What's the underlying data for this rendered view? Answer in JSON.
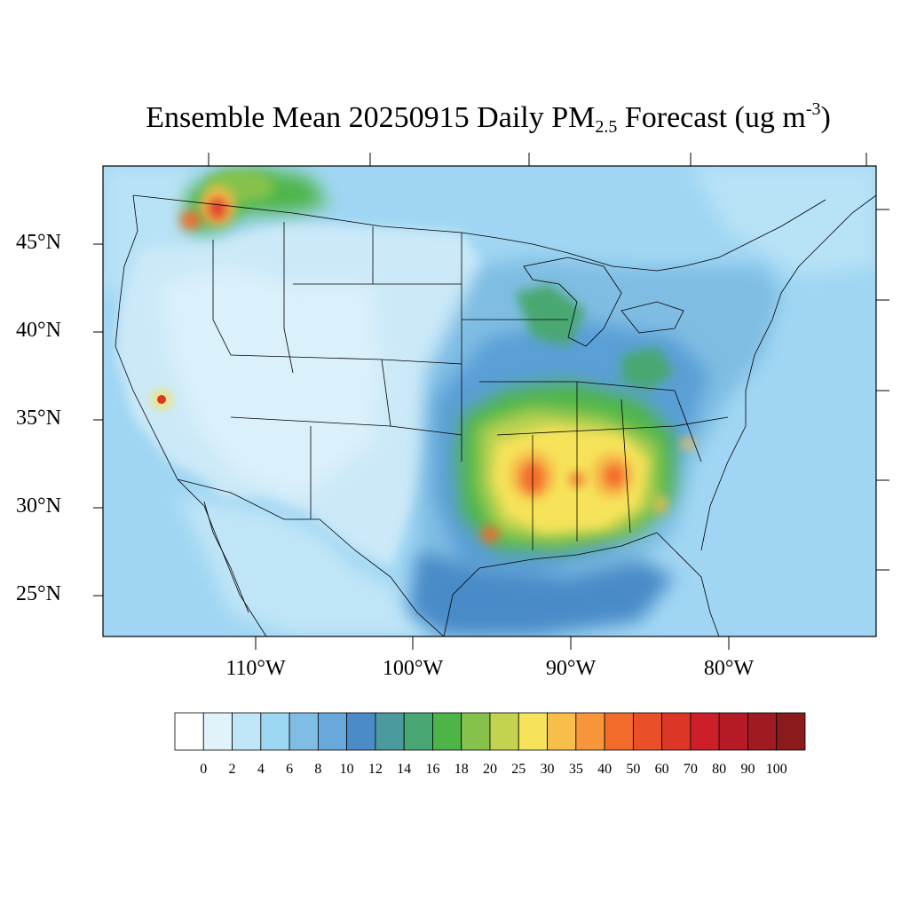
{
  "title": {
    "main": "Ensemble Mean 20250915 Daily PM",
    "subscript": "2.5",
    "middle": " Forecast (ug m",
    "superscript": "-3",
    "end": ")"
  },
  "lat_labels": [
    "45°N",
    "40°N",
    "35°N",
    "30°N",
    "25°N"
  ],
  "lon_labels": [
    "110°W",
    "100°W",
    "90°W",
    "80°W"
  ],
  "colorbar": {
    "labels": [
      "0",
      "2",
      "4",
      "6",
      "8",
      "10",
      "12",
      "14",
      "16",
      "18",
      "20",
      "25",
      "30",
      "35",
      "40",
      "50",
      "60",
      "70",
      "80",
      "90",
      "100"
    ],
    "colors": [
      "#ffffff",
      "#e0f3fb",
      "#bfe5f6",
      "#9dd6f3",
      "#80bde4",
      "#68a8db",
      "#4a8bc8",
      "#4a9a9e",
      "#48a772",
      "#4db548",
      "#86c24b",
      "#c3d34f",
      "#f6e35a",
      "#f7be4c",
      "#f69539",
      "#f36b2a",
      "#ea5028",
      "#dc3627",
      "#cc1f2a",
      "#b51b27",
      "#a01a21",
      "#8b1a1d"
    ]
  },
  "colors": {
    "background": "#a4d8f4",
    "ocean": "#9dd6f3",
    "land_low": "#c3e5f7",
    "border": "#000000"
  }
}
